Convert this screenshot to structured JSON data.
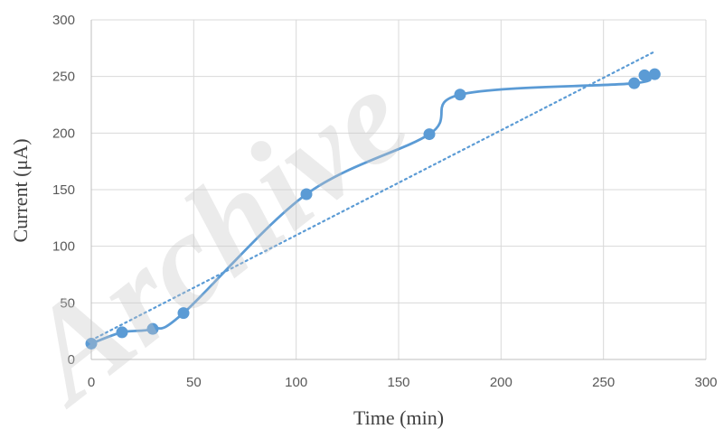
{
  "chart_data": {
    "type": "scatter",
    "xlabel": "Time (min)",
    "ylabel": "Current (μA)",
    "xlim": [
      0,
      300
    ],
    "ylim": [
      0,
      300
    ],
    "x_ticks": [
      0,
      50,
      100,
      150,
      200,
      250,
      300
    ],
    "y_ticks": [
      0,
      50,
      100,
      150,
      200,
      250,
      300
    ],
    "grid": true,
    "series": [
      {
        "style": "smooth line with markers",
        "color": "#5b9bd5",
        "points": [
          {
            "x": 0,
            "y": 14
          },
          {
            "x": 15,
            "y": 24
          },
          {
            "x": 30,
            "y": 27
          },
          {
            "x": 45,
            "y": 41
          },
          {
            "x": 105,
            "y": 146
          },
          {
            "x": 165,
            "y": 199
          },
          {
            "x": 180,
            "y": 234
          },
          {
            "x": 265,
            "y": 244
          },
          {
            "x": 270,
            "y": 251
          },
          {
            "x": 275,
            "y": 252
          }
        ]
      },
      {
        "style": "linear trendline (dotted)",
        "color": "#5b9bd5",
        "points": [
          {
            "x": 0,
            "y": 17
          },
          {
            "x": 275,
            "y": 272
          }
        ]
      }
    ]
  },
  "watermark": "Archive"
}
